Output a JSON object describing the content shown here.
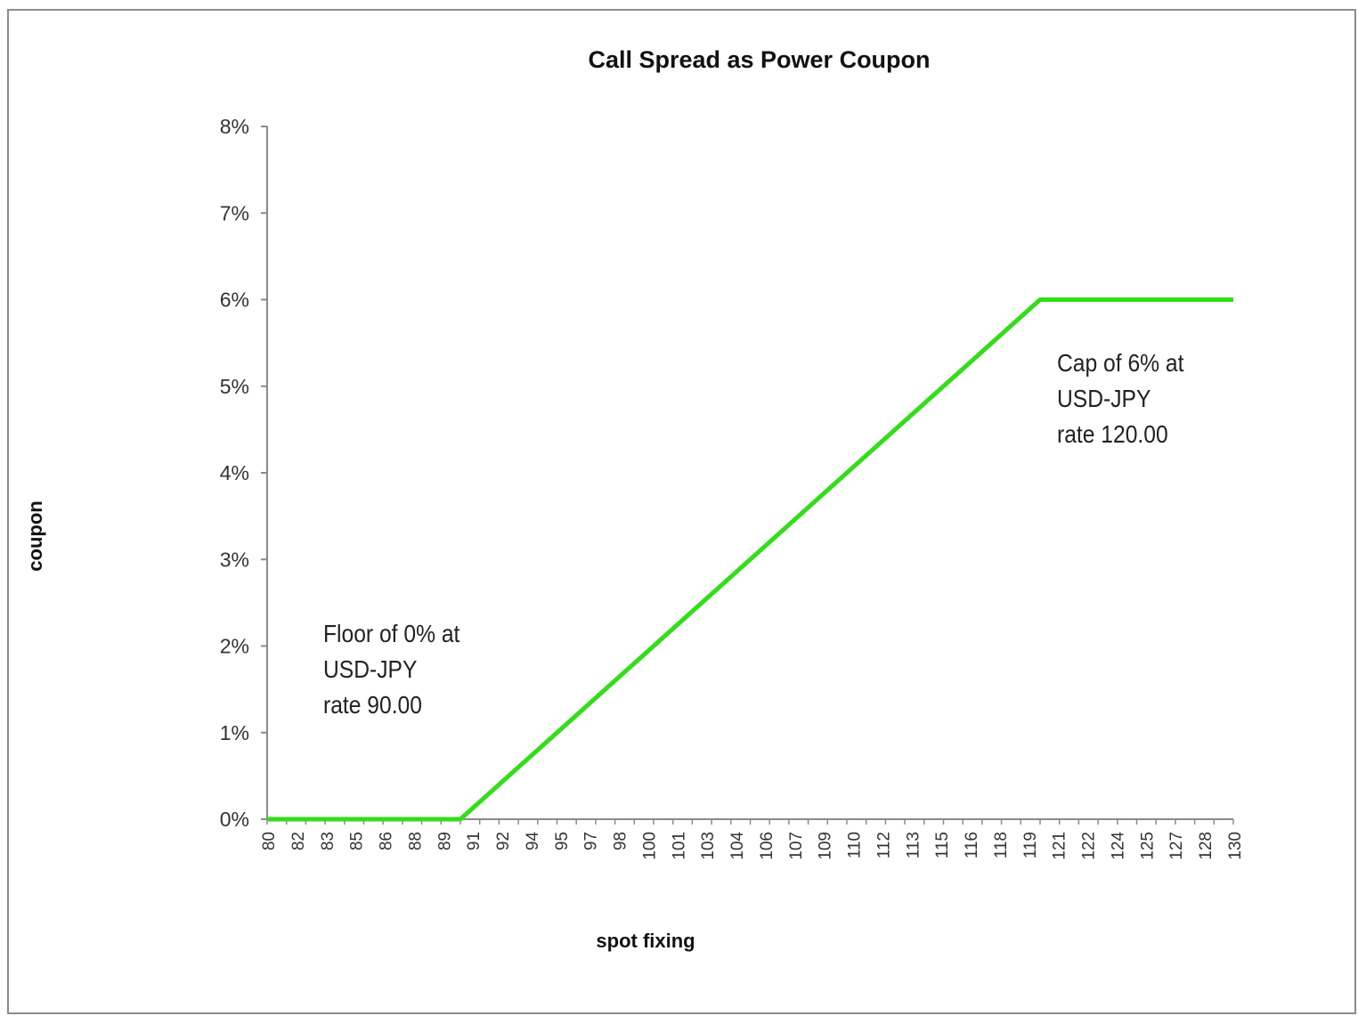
{
  "chart_data": {
    "type": "line",
    "title": "Call Spread as Power Coupon",
    "xlabel": "spot fixing",
    "ylabel": "coupon",
    "y_tick_labels": [
      "0%",
      "1%",
      "2%",
      "3%",
      "4%",
      "5%",
      "6%",
      "7%",
      "8%"
    ],
    "ylim": [
      0,
      0.08
    ],
    "x_tick_labels": [
      "80",
      "82",
      "83",
      "85",
      "86",
      "88",
      "89",
      "91",
      "92",
      "94",
      "95",
      "97",
      "98",
      "100",
      "101",
      "103",
      "104",
      "106",
      "107",
      "109",
      "110",
      "112",
      "113",
      "115",
      "116",
      "118",
      "119",
      "121",
      "122",
      "124",
      "125",
      "127",
      "128",
      "130"
    ],
    "xlim": [
      80,
      130
    ],
    "grid": false,
    "series": [
      {
        "color": "#33dd1a",
        "x": [
          80,
          90,
          120,
          130
        ],
        "y": [
          0,
          0,
          0.06,
          0.06
        ]
      }
    ],
    "annotations": [
      {
        "lines": [
          "Floor of 0% at",
          "USD-JPY",
          "rate 90.00"
        ]
      },
      {
        "lines": [
          "Cap of 6% at",
          "USD-JPY",
          "rate 120.00"
        ]
      }
    ]
  }
}
